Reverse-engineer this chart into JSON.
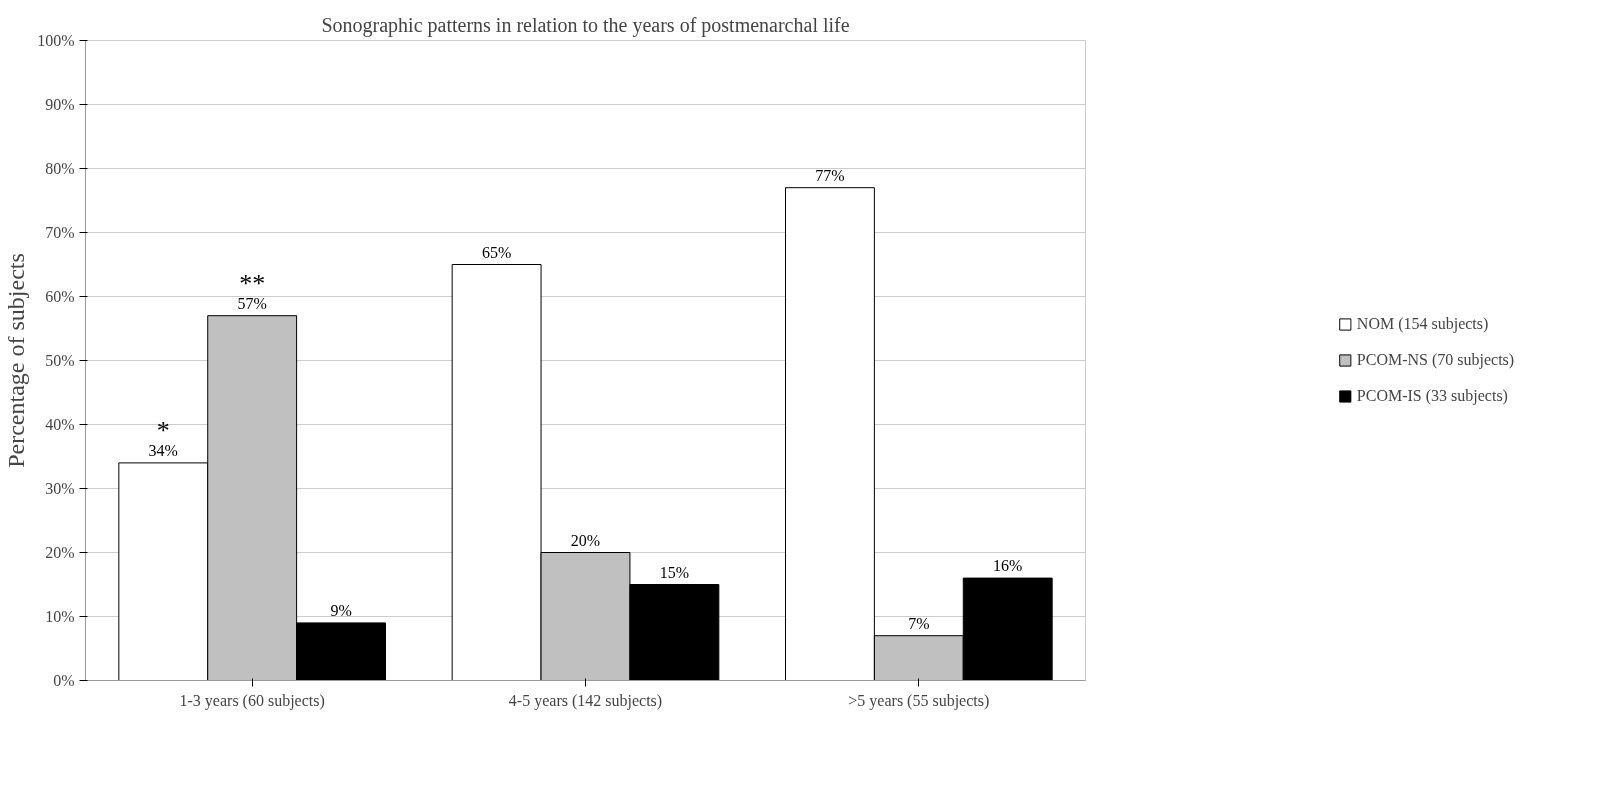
{
  "chart_data": {
    "type": "bar",
    "title": "Sonographic patterns in relation to the years of postmenarchal life",
    "ylabel": "Percentage of subjects",
    "categories": [
      "1-3 years (60 subjects)",
      "4-5 years (142 subjects)",
      ">5 years (55 subjects)"
    ],
    "series": [
      {
        "name": "NOM (154 subjects)",
        "color": "#ffffff",
        "values": [
          34,
          65,
          77
        ]
      },
      {
        "name": "PCOM-NS (70 subjects)",
        "color": "#c0c0c0",
        "values": [
          57,
          20,
          7
        ]
      },
      {
        "name": "PCOM-IS (33 subjects)",
        "color": "#000000",
        "values": [
          9,
          15,
          16
        ]
      }
    ],
    "ylim": [
      0,
      100
    ],
    "yticks": [
      {
        "value": 0,
        "label": "0%"
      },
      {
        "value": 10,
        "label": "10%"
      },
      {
        "value": 20,
        "label": "20%"
      },
      {
        "value": 30,
        "label": "30%"
      },
      {
        "value": 40,
        "label": "40%"
      },
      {
        "value": 50,
        "label": "50%"
      },
      {
        "value": 60,
        "label": "60%"
      },
      {
        "value": 70,
        "label": "70%"
      },
      {
        "value": 80,
        "label": "80%"
      },
      {
        "value": 90,
        "label": "90%"
      },
      {
        "value": 100,
        "label": "100%"
      }
    ],
    "value_labels": [
      [
        "34%",
        "65%",
        "77%"
      ],
      [
        "57%",
        "20%",
        "7%"
      ],
      [
        "9%",
        "15%",
        "16%"
      ]
    ],
    "annotations": [
      "*",
      "**"
    ],
    "grid": "y",
    "legend": "right"
  }
}
